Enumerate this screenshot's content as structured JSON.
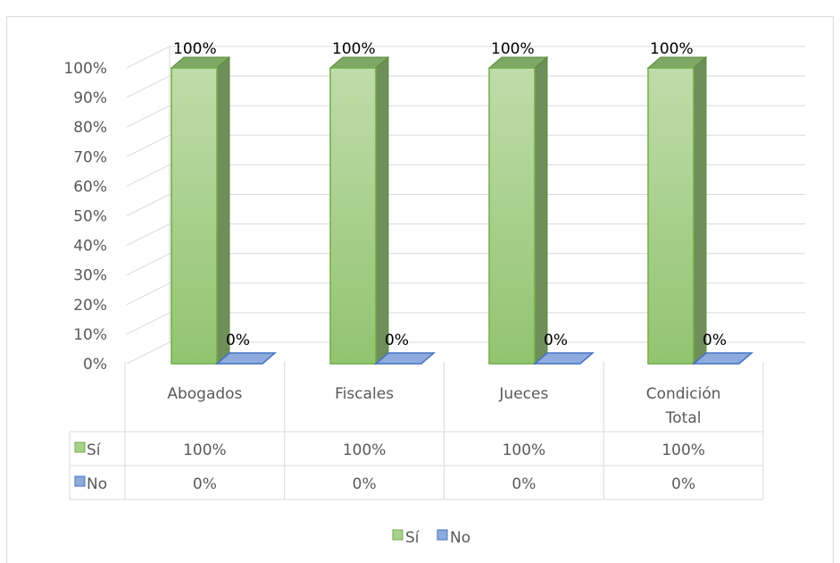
{
  "chart_data": {
    "type": "bar",
    "categories": [
      "Abogados",
      "Fiscales",
      "Jueces",
      "Condición Total"
    ],
    "series": [
      {
        "name": "Sí",
        "values": [
          100,
          100,
          100,
          100
        ],
        "labels": [
          "100%",
          "100%",
          "100%",
          "100%"
        ],
        "color": "#a9d18e"
      },
      {
        "name": "No",
        "values": [
          0,
          0,
          0,
          0
        ],
        "labels": [
          "0%",
          "0%",
          "0%",
          "0%"
        ],
        "color": "#8faadc"
      }
    ],
    "yticks": [
      "0%",
      "10%",
      "20%",
      "30%",
      "40%",
      "50%",
      "60%",
      "70%",
      "80%",
      "90%",
      "100%"
    ],
    "ylim": [
      0,
      100
    ],
    "grid": true,
    "legend": "bottom",
    "data_table": true
  }
}
